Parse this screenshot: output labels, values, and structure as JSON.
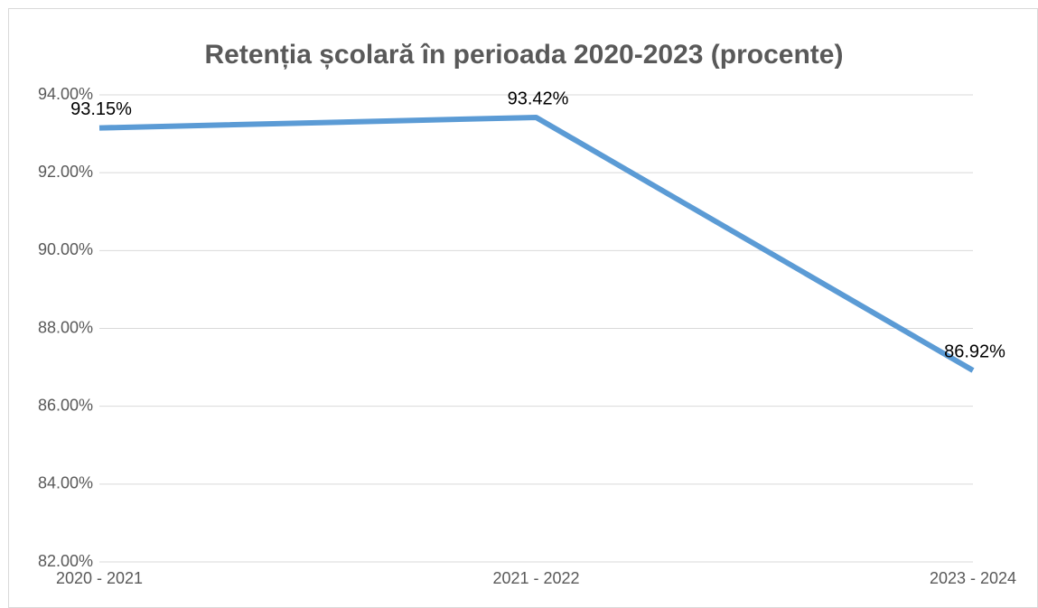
{
  "chart_data": {
    "type": "line",
    "title": "Retenția școlară în perioada 2020-2023 (procente)",
    "categories": [
      "2020 - 2021",
      "2021 - 2022",
      "2023 - 2024"
    ],
    "series": [
      {
        "name": "Retenția școlară",
        "color": "#5b9bd5",
        "values": [
          93.15,
          93.42,
          86.92
        ],
        "value_labels": [
          "93.15%",
          "93.42%",
          "86.92%"
        ]
      }
    ],
    "ylim": [
      82,
      94
    ],
    "yticks": [
      {
        "value": 82,
        "label": "82.00%"
      },
      {
        "value": 84,
        "label": "84.00%"
      },
      {
        "value": 86,
        "label": "86.00%"
      },
      {
        "value": 88,
        "label": "88.00%"
      },
      {
        "value": 90,
        "label": "90.00%"
      },
      {
        "value": 92,
        "label": "92.00%"
      },
      {
        "value": 94,
        "label": "94.00%"
      }
    ],
    "grid": true
  }
}
